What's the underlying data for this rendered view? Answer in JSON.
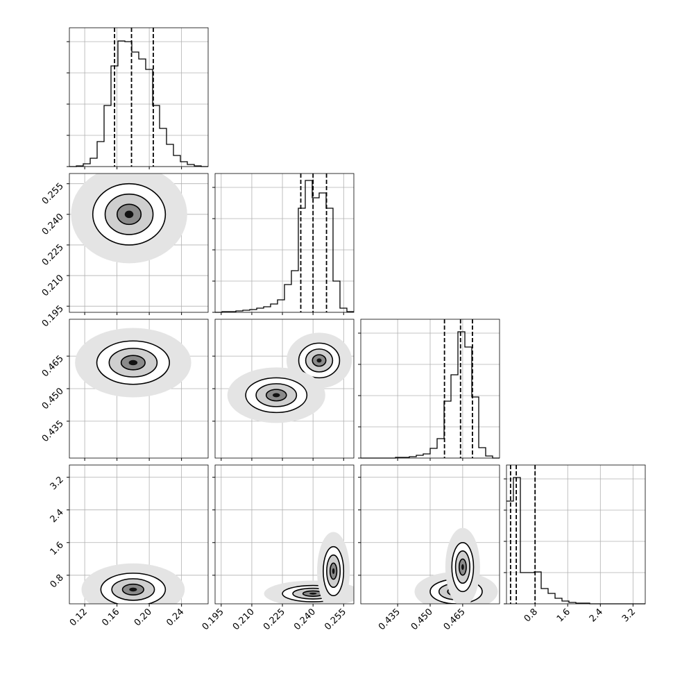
{
  "chart_data": {
    "type": "corner",
    "grid": true,
    "params": [
      {
        "lim": [
          0.101,
          0.273
        ],
        "ticks": [
          0.12,
          0.16,
          {
            "value": 0.2,
            "label": "0.20"
          },
          0.24
        ]
      },
      {
        "lim": [
          0.192,
          0.26
        ],
        "ticks": [
          0.195,
          {
            "value": 0.21,
            "label": "0.210"
          },
          0.225,
          {
            "value": 0.24,
            "label": "0.240"
          },
          0.255
        ]
      },
      {
        "lim": [
          0.418,
          0.482
        ],
        "ticks": [
          0.435,
          {
            "value": 0.45,
            "label": "0.450"
          },
          0.465
        ]
      },
      {
        "lim": [
          0.1,
          3.5
        ],
        "ticks": [
          0.8,
          1.6,
          2.4,
          3.2
        ]
      }
    ],
    "hist_ylim": [
      0,
      200
    ],
    "hist_yticks": [
      0,
      45,
      90,
      135,
      180
    ],
    "histograms": [
      {
        "bins": [
          0.101,
          0.1096,
          0.1182,
          0.1268,
          0.1354,
          0.144,
          0.1526,
          0.1612,
          0.1698,
          0.1784,
          0.187,
          0.1956,
          0.2042,
          0.2128,
          0.2214,
          0.23,
          0.2386,
          0.2472,
          0.2558,
          0.2644,
          0.273
        ],
        "counts": [
          0,
          1,
          4,
          12,
          36,
          88,
          145,
          181,
          180,
          165,
          155,
          140,
          88,
          55,
          32,
          16,
          7,
          3,
          1,
          0
        ],
        "quantiles": [
          0.157,
          0.178,
          0.205
        ]
      },
      {
        "bins": [
          0.192,
          0.1954,
          0.1988,
          0.2022,
          0.2056,
          0.209,
          0.2124,
          0.2158,
          0.2192,
          0.2226,
          0.226,
          0.2294,
          0.2328,
          0.2362,
          0.2396,
          0.243,
          0.2464,
          0.2498,
          0.2532,
          0.2566,
          0.26
        ],
        "counts": [
          0,
          1,
          1,
          2,
          3,
          4,
          6,
          8,
          12,
          18,
          40,
          60,
          150,
          190,
          165,
          172,
          150,
          45,
          6,
          1
        ],
        "quantiles": [
          0.234,
          0.24,
          0.2466
        ]
      },
      {
        "bins": [
          0.418,
          0.4212,
          0.4244,
          0.4276,
          0.4308,
          0.434,
          0.4372,
          0.4404,
          0.4436,
          0.4468,
          0.45,
          0.4532,
          0.4564,
          0.4596,
          0.4628,
          0.466,
          0.4692,
          0.4724,
          0.4756,
          0.4788,
          0.482
        ],
        "counts": [
          0,
          0,
          0,
          0,
          0,
          1,
          1,
          2,
          4,
          6,
          14,
          28,
          82,
          120,
          182,
          160,
          88,
          15,
          3,
          0
        ],
        "quantiles": [
          0.4566,
          0.464,
          0.4695
        ]
      },
      {
        "bins": [
          0.1,
          0.27,
          0.44,
          0.61,
          0.78,
          0.95,
          1.12,
          1.29,
          1.46,
          1.63,
          1.8,
          1.97,
          2.14,
          2.31,
          2.48,
          2.65,
          2.82,
          2.99,
          3.16,
          3.33,
          3.5
        ],
        "counts": [
          148,
          182,
          45,
          45,
          46,
          22,
          15,
          8,
          4,
          2,
          1,
          1,
          0,
          0,
          0,
          0,
          0,
          0,
          0,
          0
        ],
        "quantiles": [
          0.2,
          0.34,
          0.8
        ]
      }
    ],
    "pairs": [
      {
        "row": 1,
        "col": 0,
        "blobs": [
          {
            "x": 0.175,
            "y": 0.24,
            "rx": 0.045,
            "ry": 0.015
          }
        ]
      },
      {
        "row": 2,
        "col": 0,
        "blobs": [
          {
            "x": 0.18,
            "y": 0.462,
            "rx": 0.045,
            "ry": 0.01
          }
        ]
      },
      {
        "row": 2,
        "col": 1,
        "blobs": [
          {
            "x": 0.243,
            "y": 0.463,
            "rx": 0.01,
            "ry": 0.008
          },
          {
            "x": 0.222,
            "y": 0.447,
            "rx": 0.015,
            "ry": 0.008
          }
        ]
      },
      {
        "row": 3,
        "col": 0,
        "blobs": [
          {
            "x": 0.18,
            "y": 0.45,
            "rx": 0.04,
            "ry": 0.4
          }
        ]
      },
      {
        "row": 3,
        "col": 1,
        "blobs": [
          {
            "x": 0.24,
            "y": 0.35,
            "rx": 0.015,
            "ry": 0.2
          },
          {
            "x": 0.25,
            "y": 0.9,
            "rx": 0.005,
            "ry": 0.6
          }
        ]
      },
      {
        "row": 3,
        "col": 2,
        "blobs": [
          {
            "x": 0.462,
            "y": 0.4,
            "rx": 0.012,
            "ry": 0.3
          },
          {
            "x": 0.465,
            "y": 1.0,
            "rx": 0.005,
            "ry": 0.6
          }
        ]
      }
    ]
  }
}
